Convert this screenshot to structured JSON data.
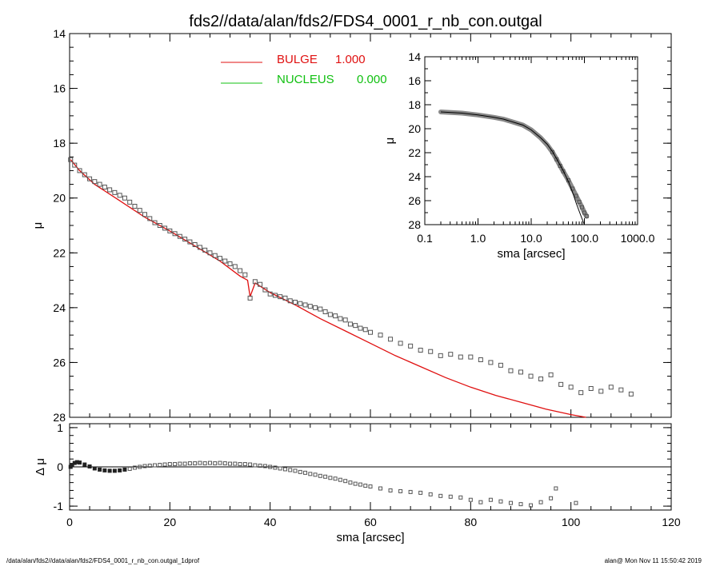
{
  "title": "fds2//data/alan/fds2/FDS4_0001_r_nb_con.outgal",
  "footer": {
    "left": "/data/alan/fds2//data/alan/fds2/FDS4_0001_r_nb_con.outgal_1dprof",
    "right": "alan@  Mon Nov 11 15:50:42 2019"
  },
  "colors": {
    "bulge": "#e01010",
    "nucleus": "#10c010",
    "data": "#555555",
    "axes": "#000000"
  },
  "chart_data": [
    {
      "type": "scatter",
      "xlabel": "",
      "ylabel": "μ",
      "xlim": [
        0,
        120
      ],
      "ylim": [
        28,
        14
      ],
      "inverted_y": true,
      "x_ticks": [],
      "y_ticks": [
        "14",
        "16",
        "18",
        "20",
        "22",
        "24",
        "26",
        "28"
      ],
      "legend_placement": "top",
      "legend": [
        {
          "name": "BULGE",
          "value": "1.000",
          "color": "#e01010"
        },
        {
          "name": "NUCLEUS",
          "value": "0.000",
          "color": "#10c010"
        }
      ],
      "series": [
        {
          "name": "BULGE",
          "style": "line",
          "color": "#e01010",
          "x": [
            0.2,
            2,
            5,
            10,
            15,
            20,
            25,
            30,
            34,
            35.5,
            36,
            37,
            40,
            45,
            50,
            55,
            60,
            65,
            70,
            75,
            80,
            85,
            90,
            95,
            100,
            103
          ],
          "y": [
            18.6,
            19.0,
            19.5,
            20.1,
            20.7,
            21.2,
            21.75,
            22.3,
            22.85,
            23.0,
            23.6,
            23.1,
            23.45,
            23.9,
            24.4,
            24.85,
            25.3,
            25.75,
            26.15,
            26.55,
            26.9,
            27.2,
            27.45,
            27.7,
            27.9,
            28.0
          ]
        },
        {
          "name": "data",
          "style": "markers",
          "color": "#555555",
          "x": [
            0.2,
            1,
            2,
            3,
            4,
            5,
            6,
            7,
            8,
            9,
            10,
            11,
            12,
            13,
            14,
            15,
            16,
            17,
            18,
            19,
            20,
            21,
            22,
            23,
            24,
            25,
            26,
            27,
            28,
            29,
            30,
            31,
            32,
            33,
            34,
            35,
            36,
            37,
            38,
            39,
            40,
            41,
            42,
            43,
            44,
            45,
            46,
            47,
            48,
            49,
            50,
            51,
            52,
            53,
            54,
            55,
            56,
            57,
            58,
            59,
            60,
            62,
            64,
            66,
            68,
            70,
            72,
            74,
            76,
            78,
            80,
            82,
            84,
            86,
            88,
            90,
            92,
            94,
            96,
            98,
            100,
            102,
            104,
            106,
            108,
            110,
            112
          ],
          "y": [
            18.6,
            18.8,
            19.0,
            19.15,
            19.3,
            19.4,
            19.5,
            19.6,
            19.7,
            19.8,
            19.9,
            20.0,
            20.15,
            20.3,
            20.45,
            20.6,
            20.75,
            20.9,
            21.0,
            21.1,
            21.2,
            21.3,
            21.4,
            21.5,
            21.6,
            21.7,
            21.8,
            21.9,
            22.0,
            22.1,
            22.2,
            22.3,
            22.4,
            22.5,
            22.65,
            22.8,
            23.65,
            23.05,
            23.15,
            23.35,
            23.5,
            23.55,
            23.6,
            23.65,
            23.75,
            23.8,
            23.85,
            23.9,
            23.95,
            24.0,
            24.05,
            24.15,
            24.25,
            24.3,
            24.4,
            24.45,
            24.6,
            24.65,
            24.75,
            24.8,
            24.9,
            25.0,
            25.15,
            25.3,
            25.4,
            25.55,
            25.6,
            25.75,
            25.7,
            25.8,
            25.8,
            25.9,
            26.0,
            26.1,
            26.3,
            26.35,
            26.5,
            26.6,
            26.45,
            26.8,
            26.9,
            27.1,
            26.95,
            27.05,
            26.9,
            27.0,
            27.15
          ]
        }
      ]
    },
    {
      "type": "scatter",
      "xlabel": "sma [arcsec]",
      "ylabel": "Δ μ",
      "xlim": [
        0,
        120
      ],
      "ylim": [
        -1.1,
        1.1
      ],
      "x_ticks": [
        "0",
        "20",
        "40",
        "60",
        "80",
        "100",
        "120"
      ],
      "y_ticks": [
        "1",
        "0",
        "-1"
      ],
      "series": [
        {
          "name": "residual",
          "style": "markers",
          "color": "#555555",
          "x": [
            0.2,
            0.5,
            1,
            1.5,
            2,
            3,
            4,
            5,
            6,
            7,
            8,
            9,
            10,
            11,
            12,
            13,
            14,
            15,
            16,
            17,
            18,
            19,
            20,
            21,
            22,
            23,
            24,
            25,
            26,
            27,
            28,
            29,
            30,
            31,
            32,
            33,
            34,
            35,
            36,
            37,
            38,
            39,
            40,
            41,
            42,
            43,
            44,
            45,
            46,
            47,
            48,
            49,
            50,
            51,
            52,
            53,
            54,
            55,
            56,
            57,
            58,
            59,
            60,
            62,
            64,
            66,
            68,
            70,
            72,
            74,
            76,
            78,
            80,
            82,
            84,
            86,
            88,
            90,
            92,
            94,
            96,
            97,
            101
          ],
          "y": [
            0.0,
            0.05,
            0.1,
            0.12,
            0.11,
            0.06,
            0.01,
            -0.04,
            -0.07,
            -0.09,
            -0.1,
            -0.1,
            -0.09,
            -0.07,
            -0.05,
            -0.02,
            0.0,
            0.02,
            0.03,
            0.04,
            0.05,
            0.06,
            0.07,
            0.07,
            0.08,
            0.08,
            0.09,
            0.09,
            0.1,
            0.09,
            0.1,
            0.09,
            0.1,
            0.09,
            0.08,
            0.08,
            0.07,
            0.07,
            0.06,
            0.04,
            0.03,
            0.02,
            0.0,
            -0.02,
            -0.04,
            -0.06,
            -0.08,
            -0.1,
            -0.13,
            -0.15,
            -0.18,
            -0.2,
            -0.23,
            -0.25,
            -0.28,
            -0.3,
            -0.33,
            -0.36,
            -0.4,
            -0.43,
            -0.45,
            -0.48,
            -0.5,
            -0.55,
            -0.6,
            -0.62,
            -0.64,
            -0.66,
            -0.7,
            -0.74,
            -0.76,
            -0.78,
            -0.84,
            -0.9,
            -0.84,
            -0.88,
            -0.92,
            -0.95,
            -0.98,
            -0.9,
            -0.8,
            -0.55,
            -0.92
          ]
        }
      ]
    },
    {
      "type": "scatter",
      "xlabel": "sma [arcsec]",
      "ylabel": "μ",
      "xscale": "log",
      "xlim": [
        0.1,
        1000
      ],
      "ylim": [
        28,
        14
      ],
      "inverted_y": true,
      "x_ticks": [
        "0.1",
        "1.0",
        "10.0",
        "100.0",
        "1000.0"
      ],
      "y_ticks": [
        "14",
        "16",
        "18",
        "20",
        "22",
        "24",
        "26",
        "28"
      ],
      "series": [
        {
          "name": "data",
          "style": "thick-line",
          "color": "#888888",
          "x": [
            0.2,
            0.5,
            1,
            2,
            3,
            5,
            7,
            10,
            15,
            20,
            25,
            30,
            35,
            40,
            50,
            60,
            70,
            80,
            90,
            100,
            110
          ],
          "y": [
            18.6,
            18.7,
            18.85,
            19.05,
            19.2,
            19.5,
            19.7,
            20.1,
            20.75,
            21.35,
            21.95,
            22.55,
            23.1,
            23.55,
            24.3,
            25.0,
            25.6,
            26.1,
            26.55,
            27.0,
            27.3
          ]
        },
        {
          "name": "model",
          "style": "line",
          "color": "#000000",
          "x": [
            0.2,
            0.5,
            1,
            2,
            3,
            5,
            7,
            10,
            15,
            20,
            25,
            30,
            35,
            40,
            50,
            60,
            70,
            80,
            90,
            100,
            105
          ],
          "y": [
            18.6,
            18.7,
            18.85,
            19.05,
            19.2,
            19.5,
            19.7,
            20.1,
            20.75,
            21.3,
            21.9,
            22.5,
            23.05,
            23.5,
            24.4,
            25.3,
            26.2,
            26.9,
            27.5,
            28.0,
            28.3
          ]
        }
      ]
    }
  ]
}
